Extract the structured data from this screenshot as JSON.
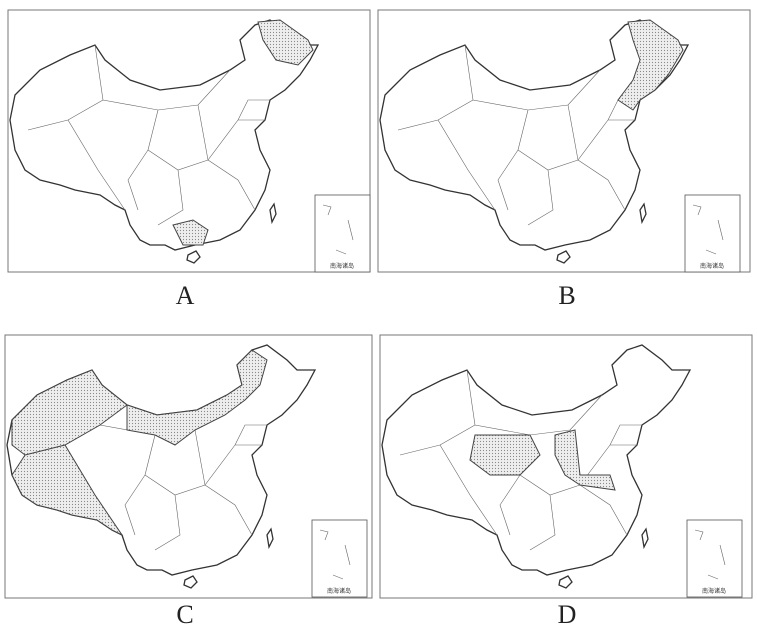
{
  "panels": [
    {
      "label": "A"
    },
    {
      "label": "B"
    },
    {
      "label": "C"
    },
    {
      "label": "D"
    }
  ],
  "inset_label": "南海诸岛"
}
